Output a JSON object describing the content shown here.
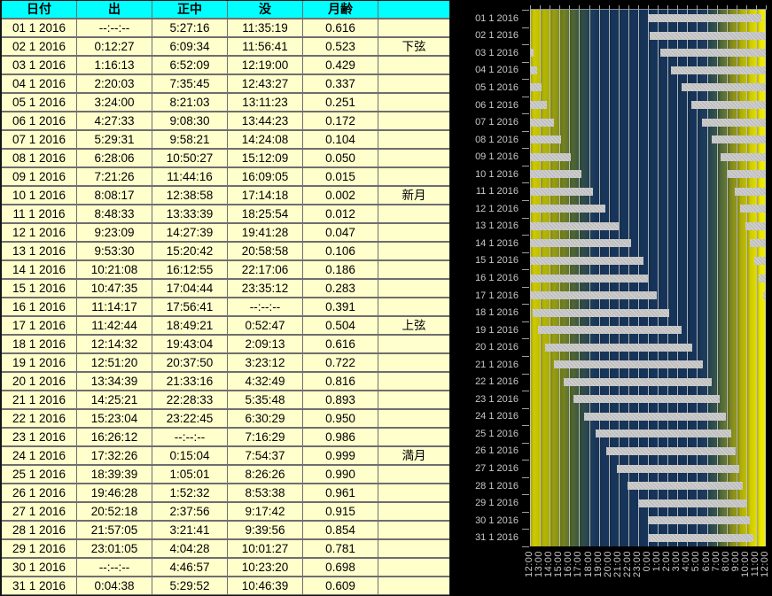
{
  "table": {
    "headers": {
      "date": "日付",
      "rise": "出",
      "transit": "正中",
      "set": "没",
      "age": "月齢",
      "phase": ""
    }
  },
  "chart_data": {
    "type": "bar",
    "orientation": "horizontal",
    "x_axis": {
      "start": "12:00",
      "end": "12:00",
      "hours_span": 24,
      "labels": [
        "12:00",
        "13:00",
        "14:00",
        "15:00",
        "16:00",
        "17:00",
        "18:00",
        "19:00",
        "20:00",
        "21:00",
        "22:00",
        "23:00",
        "0:00",
        "1:00",
        "2:00",
        "3:00",
        "4:00",
        "5:00",
        "6:00",
        "7:00",
        "8:00",
        "9:00",
        "10:00",
        "11:00",
        "12:00"
      ]
    },
    "bar_rule": "moon above horizon from rise to set, wrapped on noon-to-noon axis",
    "null_time": "--:--:--",
    "colors": {
      "day_bg": "#f0ee00",
      "night_bg": "#16345a",
      "bar": "#c9c9c9",
      "grid": "#c1c8d0",
      "axis_text": "#c8c8c8",
      "table_header_bg": "#00ffff",
      "table_cell_bg": "#ffffcc"
    },
    "rows": [
      {
        "date": "01 1 2016",
        "rise": "--:--:--",
        "transit": "5:27:16",
        "set": "11:35:19",
        "age": "0.616",
        "phase": ""
      },
      {
        "date": "02 1 2016",
        "rise": "0:12:27",
        "transit": "6:09:34",
        "set": "11:56:41",
        "age": "0.523",
        "phase": "下弦"
      },
      {
        "date": "03 1 2016",
        "rise": "1:16:13",
        "transit": "6:52:09",
        "set": "12:19:00",
        "age": "0.429",
        "phase": ""
      },
      {
        "date": "04 1 2016",
        "rise": "2:20:03",
        "transit": "7:35:45",
        "set": "12:43:27",
        "age": "0.337",
        "phase": ""
      },
      {
        "date": "05 1 2016",
        "rise": "3:24:00",
        "transit": "8:21:03",
        "set": "13:11:23",
        "age": "0.251",
        "phase": ""
      },
      {
        "date": "06 1 2016",
        "rise": "4:27:33",
        "transit": "9:08:30",
        "set": "13:44:23",
        "age": "0.172",
        "phase": ""
      },
      {
        "date": "07 1 2016",
        "rise": "5:29:31",
        "transit": "9:58:21",
        "set": "14:24:08",
        "age": "0.104",
        "phase": ""
      },
      {
        "date": "08 1 2016",
        "rise": "6:28:06",
        "transit": "10:50:27",
        "set": "15:12:09",
        "age": "0.050",
        "phase": ""
      },
      {
        "date": "09 1 2016",
        "rise": "7:21:26",
        "transit": "11:44:16",
        "set": "16:09:05",
        "age": "0.015",
        "phase": ""
      },
      {
        "date": "10 1 2016",
        "rise": "8:08:17",
        "transit": "12:38:58",
        "set": "17:14:18",
        "age": "0.002",
        "phase": "新月"
      },
      {
        "date": "11 1 2016",
        "rise": "8:48:33",
        "transit": "13:33:39",
        "set": "18:25:54",
        "age": "0.012",
        "phase": ""
      },
      {
        "date": "12 1 2016",
        "rise": "9:23:09",
        "transit": "14:27:39",
        "set": "19:41:28",
        "age": "0.047",
        "phase": ""
      },
      {
        "date": "13 1 2016",
        "rise": "9:53:30",
        "transit": "15:20:42",
        "set": "20:58:58",
        "age": "0.106",
        "phase": ""
      },
      {
        "date": "14 1 2016",
        "rise": "10:21:08",
        "transit": "16:12:55",
        "set": "22:17:06",
        "age": "0.186",
        "phase": ""
      },
      {
        "date": "15 1 2016",
        "rise": "10:47:35",
        "transit": "17:04:44",
        "set": "23:35:12",
        "age": "0.283",
        "phase": ""
      },
      {
        "date": "16 1 2016",
        "rise": "11:14:17",
        "transit": "17:56:41",
        "set": "--:--:--",
        "age": "0.391",
        "phase": ""
      },
      {
        "date": "17 1 2016",
        "rise": "11:42:44",
        "transit": "18:49:21",
        "set": "0:52:47",
        "age": "0.504",
        "phase": "上弦"
      },
      {
        "date": "18 1 2016",
        "rise": "12:14:32",
        "transit": "19:43:04",
        "set": "2:09:13",
        "age": "0.616",
        "phase": ""
      },
      {
        "date": "19 1 2016",
        "rise": "12:51:20",
        "transit": "20:37:50",
        "set": "3:23:12",
        "age": "0.722",
        "phase": ""
      },
      {
        "date": "20 1 2016",
        "rise": "13:34:39",
        "transit": "21:33:16",
        "set": "4:32:49",
        "age": "0.816",
        "phase": ""
      },
      {
        "date": "21 1 2016",
        "rise": "14:25:21",
        "transit": "22:28:33",
        "set": "5:35:48",
        "age": "0.893",
        "phase": ""
      },
      {
        "date": "22 1 2016",
        "rise": "15:23:04",
        "transit": "23:22:45",
        "set": "6:30:29",
        "age": "0.950",
        "phase": ""
      },
      {
        "date": "23 1 2016",
        "rise": "16:26:12",
        "transit": "--:--:--",
        "set": "7:16:29",
        "age": "0.986",
        "phase": ""
      },
      {
        "date": "24 1 2016",
        "rise": "17:32:26",
        "transit": "0:15:04",
        "set": "7:54:37",
        "age": "0.999",
        "phase": "満月"
      },
      {
        "date": "25 1 2016",
        "rise": "18:39:39",
        "transit": "1:05:01",
        "set": "8:26:26",
        "age": "0.990",
        "phase": ""
      },
      {
        "date": "26 1 2016",
        "rise": "19:46:28",
        "transit": "1:52:32",
        "set": "8:53:38",
        "age": "0.961",
        "phase": ""
      },
      {
        "date": "27 1 2016",
        "rise": "20:52:18",
        "transit": "2:37:56",
        "set": "9:17:42",
        "age": "0.915",
        "phase": ""
      },
      {
        "date": "28 1 2016",
        "rise": "21:57:05",
        "transit": "3:21:41",
        "set": "9:39:56",
        "age": "0.854",
        "phase": ""
      },
      {
        "date": "29 1 2016",
        "rise": "23:01:05",
        "transit": "4:04:28",
        "set": "10:01:27",
        "age": "0.781",
        "phase": ""
      },
      {
        "date": "30 1 2016",
        "rise": "--:--:--",
        "transit": "4:46:57",
        "set": "10:23:20",
        "age": "0.698",
        "phase": ""
      },
      {
        "date": "31 1 2016",
        "rise": "0:04:38",
        "transit": "5:29:52",
        "set": "10:46:39",
        "age": "0.609",
        "phase": ""
      }
    ]
  }
}
